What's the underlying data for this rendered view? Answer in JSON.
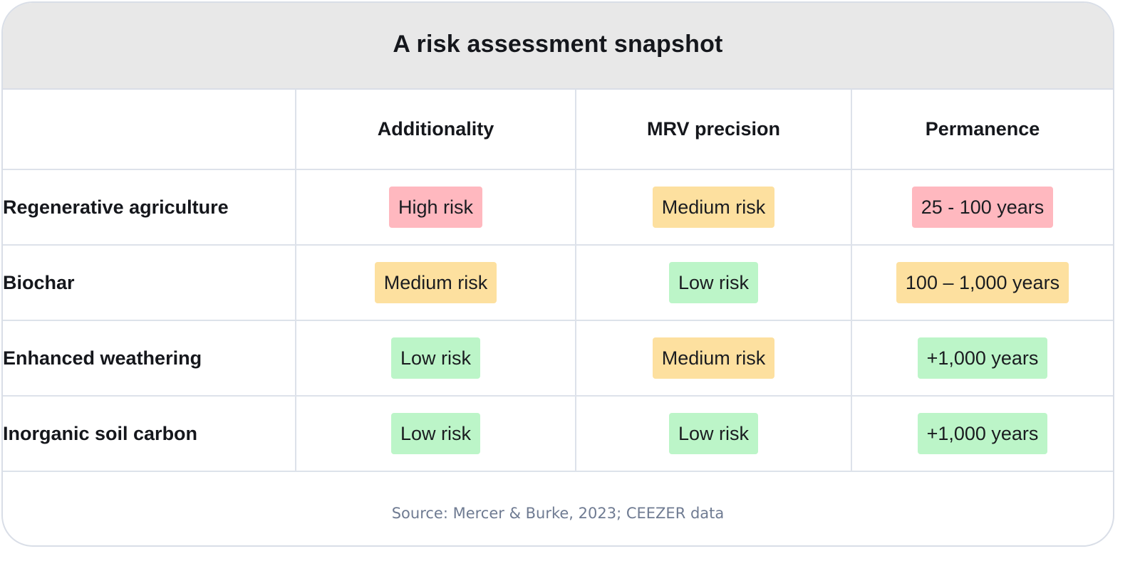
{
  "title": "A risk assessment snapshot",
  "columns": [
    "",
    "Additionality",
    "MRV precision",
    "Permanence"
  ],
  "levels": {
    "high": "#ffb8bf",
    "medium": "#fde09f",
    "low": "#bcf5c8"
  },
  "rows": [
    {
      "label": "Regenerative agriculture",
      "cells": [
        {
          "text": "High risk",
          "level": "high"
        },
        {
          "text": "Medium risk",
          "level": "medium"
        },
        {
          "text": "25 - 100 years",
          "level": "high"
        }
      ]
    },
    {
      "label": "Biochar",
      "cells": [
        {
          "text": "Medium risk",
          "level": "medium"
        },
        {
          "text": "Low risk",
          "level": "low"
        },
        {
          "text": "100 – 1,000 years",
          "level": "medium"
        }
      ]
    },
    {
      "label": "Enhanced weathering",
      "cells": [
        {
          "text": "Low risk",
          "level": "low"
        },
        {
          "text": "Medium risk",
          "level": "medium"
        },
        {
          "text": "+1,000 years",
          "level": "low"
        }
      ]
    },
    {
      "label": "Inorganic soil carbon",
      "cells": [
        {
          "text": "Low risk",
          "level": "low"
        },
        {
          "text": "Low risk",
          "level": "low"
        },
        {
          "text": "+1,000 years",
          "level": "low"
        }
      ]
    }
  ],
  "source": "Source: Mercer & Burke, 2023; CEEZER data"
}
